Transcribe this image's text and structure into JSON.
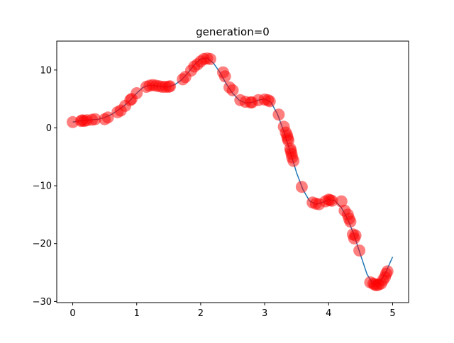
{
  "chart_data": {
    "type": "scatter",
    "title": "generation=0",
    "xlabel": "",
    "ylabel": "",
    "xlim": [
      -0.25,
      5.25
    ],
    "ylim": [
      -30.2,
      15.0
    ],
    "x_ticks": [
      0,
      1,
      2,
      3,
      4,
      5
    ],
    "x_tick_labels": [
      "0",
      "1",
      "2",
      "3",
      "4",
      "5"
    ],
    "y_ticks": [
      10,
      0,
      -10,
      -20,
      -30
    ],
    "y_tick_labels": [
      "10",
      "0",
      "−10",
      "−20",
      "−30"
    ],
    "grid": false,
    "line_color": "#1f77b4",
    "point_color": "#ff0000",
    "point_opacity": 0.5,
    "line": {
      "x": [
        0.0,
        0.1,
        0.2,
        0.3,
        0.4,
        0.5,
        0.6,
        0.7,
        0.8,
        0.9,
        1.0,
        1.1,
        1.2,
        1.3,
        1.4,
        1.5,
        1.6,
        1.7,
        1.8,
        1.9,
        2.0,
        2.1,
        2.2,
        2.3,
        2.4,
        2.5,
        2.6,
        2.7,
        2.8,
        2.9,
        3.0,
        3.1,
        3.2,
        3.3,
        3.4,
        3.5,
        3.6,
        3.7,
        3.8,
        3.9,
        4.0,
        4.1,
        4.2,
        4.3,
        4.4,
        4.5,
        4.6,
        4.7,
        4.8,
        4.9,
        5.0
      ],
      "y": [
        1.0,
        1.2,
        1.3,
        1.4,
        1.5,
        1.8,
        2.3,
        3.0,
        3.8,
        4.8,
        6.0,
        7.0,
        7.4,
        7.3,
        7.1,
        7.1,
        7.5,
        8.3,
        9.5,
        10.9,
        11.9,
        12.1,
        11.2,
        9.6,
        7.6,
        6.0,
        4.8,
        4.3,
        4.4,
        4.8,
        5.0,
        4.4,
        2.4,
        -0.6,
        -4.2,
        -7.8,
        -10.7,
        -12.6,
        -13.2,
        -12.9,
        -12.4,
        -12.6,
        -13.8,
        -15.8,
        -18.6,
        -22.0,
        -25.3,
        -27.1,
        -26.7,
        -24.8,
        -22.3
      ]
    },
    "points": {
      "x": [
        0.0,
        0.13,
        0.15,
        0.18,
        0.22,
        0.3,
        0.35,
        0.5,
        0.55,
        0.7,
        0.75,
        0.82,
        0.9,
        0.92,
        1.0,
        1.15,
        1.2,
        1.25,
        1.3,
        1.35,
        1.4,
        1.45,
        1.5,
        1.52,
        1.72,
        1.76,
        1.85,
        1.9,
        1.95,
        2.0,
        2.05,
        2.1,
        2.15,
        2.35,
        2.38,
        2.45,
        2.5,
        2.62,
        2.7,
        2.78,
        2.8,
        2.9,
        3.0,
        3.05,
        3.08,
        3.22,
        3.3,
        3.33,
        3.35,
        3.36,
        3.37,
        3.4,
        3.41,
        3.42,
        3.43,
        3.45,
        3.58,
        3.75,
        3.8,
        3.85,
        3.95,
        4.0,
        4.02,
        4.05,
        4.2,
        4.25,
        4.3,
        4.32,
        4.34,
        4.38,
        4.4,
        4.42,
        4.48,
        4.65,
        4.7,
        4.72,
        4.75,
        4.78,
        4.82,
        4.85,
        4.88,
        4.9,
        4.92
      ],
      "y": [
        1.0,
        1.2,
        1.3,
        1.2,
        1.3,
        1.4,
        1.5,
        1.5,
        1.8,
        2.7,
        3.0,
        3.8,
        4.8,
        5.0,
        6.0,
        7.1,
        7.3,
        7.4,
        7.3,
        7.2,
        7.1,
        7.1,
        7.1,
        7.2,
        8.4,
        8.8,
        9.9,
        10.6,
        11.0,
        11.5,
        11.9,
        12.0,
        11.9,
        9.6,
        8.9,
        7.0,
        6.5,
        4.8,
        4.5,
        4.4,
        4.4,
        4.8,
        4.9,
        4.8,
        4.6,
        2.3,
        0.2,
        -0.8,
        -1.3,
        -1.8,
        -2.2,
        -3.6,
        -4.0,
        -4.5,
        -5.1,
        -5.7,
        -10.2,
        -12.9,
        -13.1,
        -13.2,
        -12.7,
        -12.4,
        -12.5,
        -12.6,
        -12.7,
        -14.3,
        -15.0,
        -15.7,
        -16.2,
        -18.4,
        -19.1,
        -18.6,
        -21.2,
        -26.7,
        -26.9,
        -27.1,
        -27.2,
        -27.1,
        -26.9,
        -26.3,
        -25.8,
        -25.2,
        -24.8
      ]
    }
  }
}
